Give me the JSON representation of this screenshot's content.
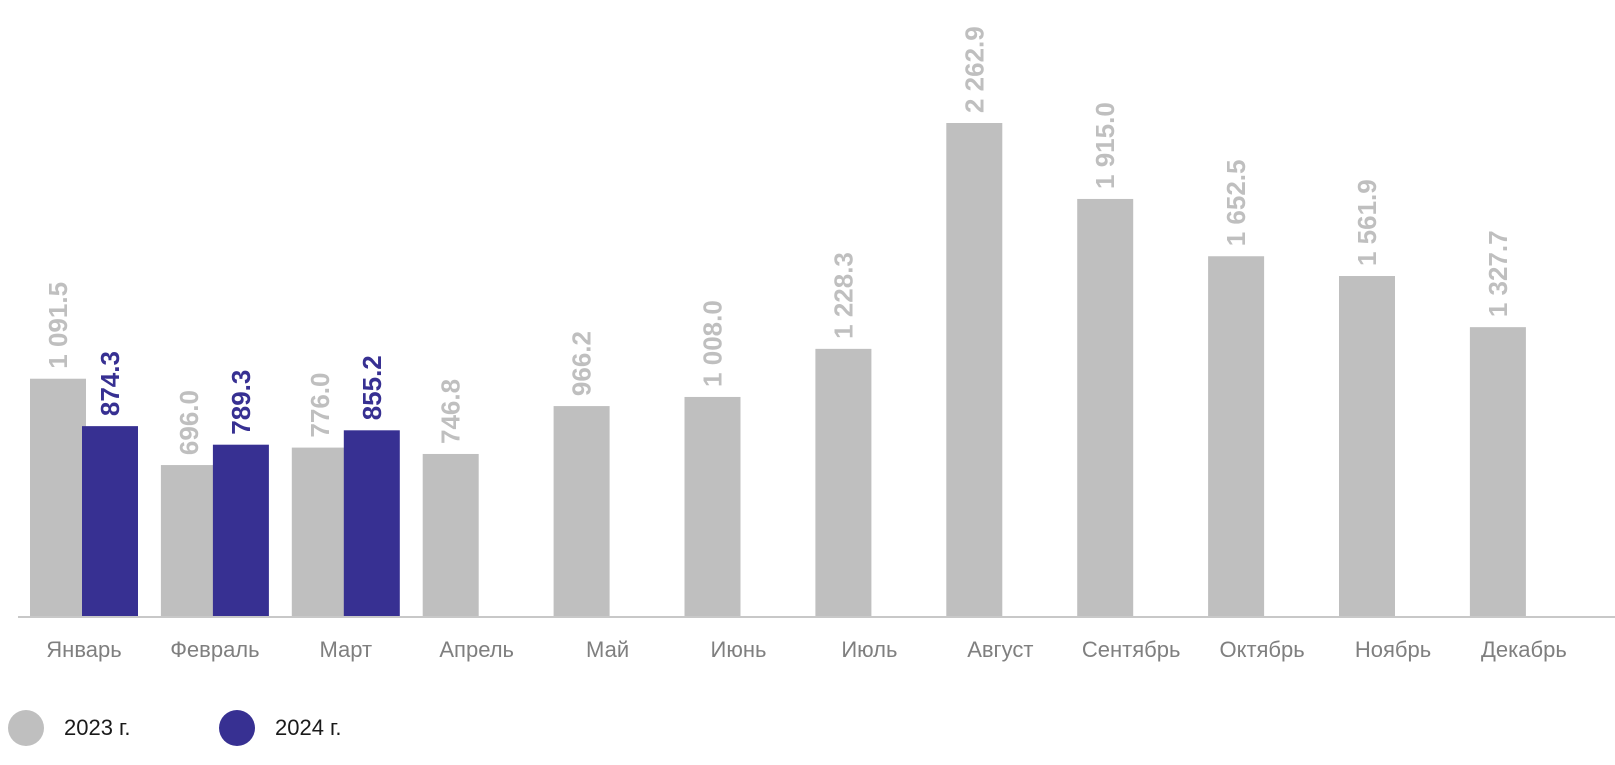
{
  "chart_data": {
    "type": "bar",
    "categories": [
      "Январь",
      "Февраль",
      "Март",
      "Апрель",
      "Май",
      "Июнь",
      "Июль",
      "Август",
      "Сентябрь",
      "Октябрь",
      "Ноябрь",
      "Декабрь"
    ],
    "series": [
      {
        "name": "2023 г.",
        "color": "#bfbfbf",
        "values": [
          1091.5,
          696.0,
          776.0,
          746.8,
          966.2,
          1008.0,
          1228.3,
          2262.9,
          1915.0,
          1652.5,
          1561.9,
          1327.7
        ],
        "labels": [
          "1 091.5",
          "696.0",
          "776.0",
          "746.8",
          "966.2",
          "1 008.0",
          "1 228.3",
          "2 262.9",
          "1 915.0",
          "1 652.5",
          "1 561.9",
          "1 327.7"
        ]
      },
      {
        "name": "2024 г.",
        "color": "#373092",
        "values": [
          874.3,
          789.3,
          855.2,
          null,
          null,
          null,
          null,
          null,
          null,
          null,
          null,
          null
        ],
        "labels": [
          "874.3",
          "789.3",
          "855.2",
          "",
          "",
          "",
          "",
          "",
          "",
          "",
          "",
          ""
        ]
      }
    ],
    "title": "",
    "xlabel": "",
    "ylabel": "",
    "ylim": [
      0,
      2262.9
    ],
    "grid": false,
    "legend_position": "bottom-left"
  }
}
